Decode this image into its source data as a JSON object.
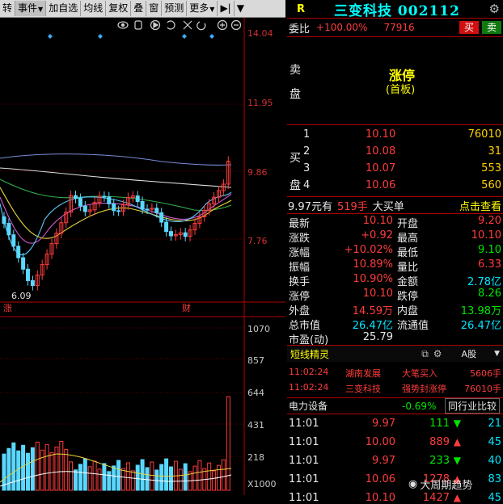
{
  "toolbar": {
    "items": [
      "转",
      "事件",
      "加自选",
      "均线",
      "复权",
      "叠",
      "窗",
      "预测",
      "更多"
    ]
  },
  "chart": {
    "price_ticks": [
      "14.04",
      "11.95",
      "9.86",
      "7.76"
    ],
    "low_label": "6.09",
    "vol_ticks": [
      "1070",
      "857",
      "644",
      "431",
      "218"
    ],
    "vol_unit": "X1000",
    "event_marks": [
      "涨",
      "财"
    ]
  },
  "chart_data": {
    "type": "line",
    "price_axis": [
      6.09,
      14.04
    ],
    "volume_axis": [
      0,
      1070000
    ]
  },
  "header": {
    "r_tag": "R",
    "stock_name": "三变科技 002112"
  },
  "weibi": {
    "label": "委比",
    "value": "+100.00%",
    "volume": "77916",
    "buy_btn": "买",
    "sell_btn": "卖"
  },
  "sell_side": {
    "label_chars": [
      "卖",
      "盘"
    ],
    "status": "涨停",
    "status_sub": "(首板)"
  },
  "buy_side": {
    "label_chars": [
      "买",
      "盘"
    ],
    "levels": [
      {
        "n": "1",
        "price": "10.10",
        "vol": "76010"
      },
      {
        "n": "2",
        "price": "10.08",
        "vol": "31"
      },
      {
        "n": "3",
        "price": "10.07",
        "vol": "553"
      },
      {
        "n": "4",
        "price": "10.06",
        "vol": "560"
      }
    ]
  },
  "big_order": {
    "price": "9.97元有",
    "qty": "519手",
    "label": "大买单",
    "link": "点击查看"
  },
  "stats": [
    {
      "l1": "最新",
      "v1": "10.10",
      "l2": "开盘",
      "v2": "9.20"
    },
    {
      "l1": "涨跌",
      "v1": "+0.92",
      "l2": "最高",
      "v2": "10.10"
    },
    {
      "l1": "涨幅",
      "v1": "+10.02%",
      "l2": "最低",
      "v2": "9.10"
    },
    {
      "l1": "振幅",
      "v1": "10.89%",
      "l2": "量比",
      "v2": "6.33"
    },
    {
      "l1": "换手",
      "v1": "10.90%",
      "l2": "金额",
      "v2": "2.78亿"
    },
    {
      "l1": "涨停",
      "v1": "10.10",
      "l2": "跌停",
      "v2": "8.26"
    },
    {
      "l1": "外盘",
      "v1": "14.59万",
      "l2": "内盘",
      "v2": "13.98万"
    },
    {
      "l1": "总市值",
      "v1": "26.47亿",
      "l2": "流通值",
      "v2": "26.47亿"
    },
    {
      "l1": "市盈(动)",
      "v1": "25.79",
      "l2": "",
      "v2": ""
    }
  ],
  "sprite": {
    "title": "短线精灵",
    "share": "A股",
    "rows": [
      {
        "time": "11:02:24",
        "name": "湖南发展",
        "event": "大笔买入",
        "val": "5606手"
      },
      {
        "time": "11:02:24",
        "name": "三变科技",
        "event": "强势封涨停",
        "val": "76010手"
      }
    ]
  },
  "sector": {
    "name": "电力设备",
    "pct": "-0.69%",
    "compare": "同行业比较"
  },
  "ticks": [
    {
      "time": "11:01",
      "price": "9.97",
      "vol": "111",
      "dir": "down",
      "n": "21"
    },
    {
      "time": "11:01",
      "price": "10.00",
      "vol": "889",
      "dir": "up",
      "n": "45"
    },
    {
      "time": "11:01",
      "price": "9.97",
      "vol": "233",
      "dir": "down",
      "n": "40"
    },
    {
      "time": "11:01",
      "price": "10.06",
      "vol": "1278",
      "dir": "up",
      "n": "83"
    },
    {
      "time": "11:01",
      "price": "10.10",
      "vol": "1427",
      "dir": "up",
      "n": "45"
    }
  ],
  "watermark": "大周期趋势"
}
